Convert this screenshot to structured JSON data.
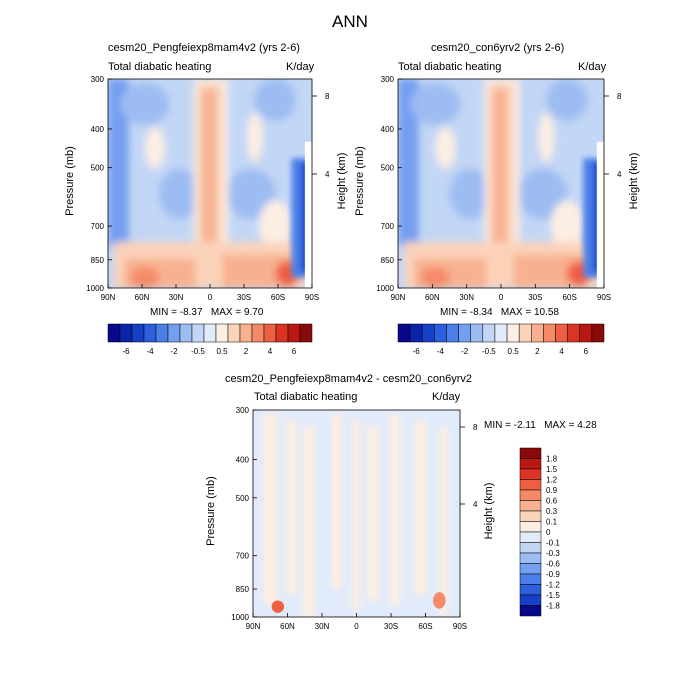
{
  "main_title": "ANN",
  "chart_data": [
    {
      "type": "heatmap",
      "title": "cesm20_Pengfeiexp8mam4v2 (yrs 2-6)",
      "variable": "Total diabatic heating",
      "units": "K/day",
      "x_ticks": [
        "90N",
        "60N",
        "30N",
        "0",
        "30S",
        "60S",
        "90S"
      ],
      "x_values": [
        90,
        60,
        30,
        0,
        -30,
        -60,
        -90
      ],
      "y_ticks": [
        "300",
        "400",
        "500",
        "700",
        "850",
        "1000"
      ],
      "y_values": [
        300,
        400,
        500,
        700,
        850,
        1000
      ],
      "ylabel": "Pressure (mb)",
      "ylabel_right": "Height (km)",
      "right_ticks": [
        "8",
        "4"
      ],
      "right_values": [
        8,
        4
      ],
      "min_label": "MIN =",
      "min": "-8.37",
      "max_label": "MAX =",
      "max": "9.70",
      "colorbar_labels": [
        "-6",
        "-4",
        "-2",
        "-0.5",
        "0.5",
        "2",
        "4",
        "6"
      ]
    },
    {
      "type": "heatmap",
      "title": "cesm20_con6yrv2 (yrs 2-6)",
      "variable": "Total diabatic heating",
      "units": "K/day",
      "x_ticks": [
        "90N",
        "60N",
        "30N",
        "0",
        "30S",
        "60S",
        "90S"
      ],
      "x_values": [
        90,
        60,
        30,
        0,
        -30,
        -60,
        -90
      ],
      "y_ticks": [
        "300",
        "400",
        "500",
        "700",
        "850",
        "1000"
      ],
      "y_values": [
        300,
        400,
        500,
        700,
        850,
        1000
      ],
      "ylabel": "Pressure (mb)",
      "ylabel_right": "Height (km)",
      "right_ticks": [
        "8",
        "4"
      ],
      "right_values": [
        8,
        4
      ],
      "min_label": "MIN =",
      "min": "-8.34",
      "max_label": "MAX =",
      "max": "10.58",
      "colorbar_labels": [
        "-6",
        "-4",
        "-2",
        "-0.5",
        "0.5",
        "2",
        "4",
        "6"
      ]
    },
    {
      "type": "heatmap",
      "title": "cesm20_Pengfeiexp8mam4v2 - cesm20_con6yrv2",
      "variable": "Total diabatic heating",
      "units": "K/day",
      "x_ticks": [
        "90N",
        "60N",
        "30N",
        "0",
        "30S",
        "60S",
        "90S"
      ],
      "x_values": [
        90,
        60,
        30,
        0,
        -30,
        -60,
        -90
      ],
      "y_ticks": [
        "300",
        "400",
        "500",
        "700",
        "850",
        "1000"
      ],
      "y_values": [
        300,
        400,
        500,
        700,
        850,
        1000
      ],
      "ylabel": "Pressure (mb)",
      "ylabel_right": "Height (km)",
      "right_ticks": [
        "8",
        "4"
      ],
      "right_values": [
        8,
        4
      ],
      "min_label": "MIN =",
      "min": "-2.11",
      "max_label": "MAX =",
      "max": "4.28",
      "colorbar_labels": [
        "1.8",
        "1.5",
        "1.2",
        "0.9",
        "0.6",
        "0.3",
        "0.1",
        "0",
        "-0.1",
        "-0.3",
        "-0.6",
        "-0.9",
        "-1.2",
        "-1.5",
        "-1.8"
      ]
    }
  ],
  "palette": [
    "#08088a",
    "#0b23a8",
    "#1740c8",
    "#2c5fdc",
    "#4a7ee8",
    "#739ff0",
    "#9dbcf2",
    "#c2d6f5",
    "#e1ebfa",
    "#fdeee3",
    "#fbd3b9",
    "#f8b190",
    "#f58a68",
    "#ee5f42",
    "#dc3424",
    "#b81811",
    "#8a0a0a"
  ]
}
